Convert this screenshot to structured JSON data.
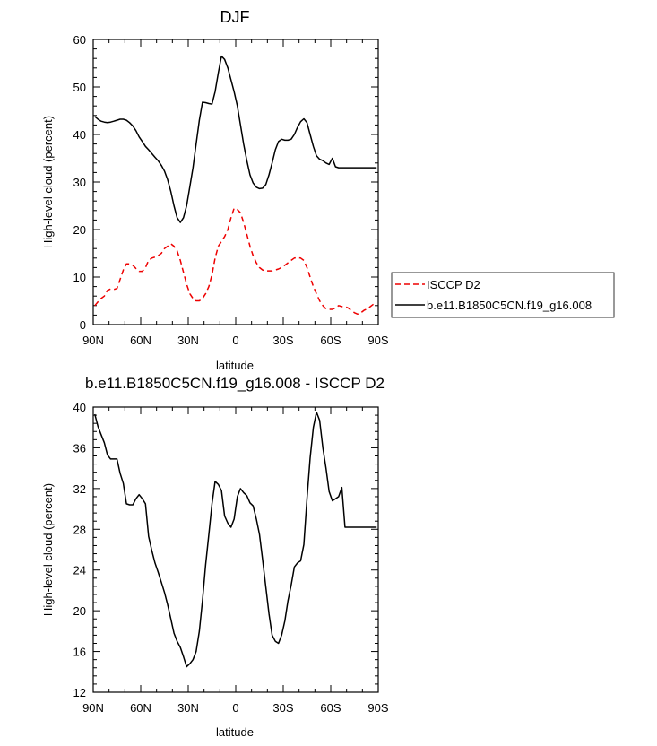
{
  "chart_data": [
    {
      "type": "line",
      "title": "DJF",
      "xlabel": "latitude",
      "ylabel": "High-level cloud (percent)",
      "xlim": [
        90,
        -90
      ],
      "ylim": [
        0,
        60
      ],
      "yticks": [
        0,
        10,
        20,
        30,
        40,
        50,
        60
      ],
      "xticks": [
        {
          "value": 90,
          "label": "90N"
        },
        {
          "value": 60,
          "label": "60N"
        },
        {
          "value": 30,
          "label": "30N"
        },
        {
          "value": 0,
          "label": "0"
        },
        {
          "value": -30,
          "label": "30S"
        },
        {
          "value": -60,
          "label": "60S"
        },
        {
          "value": -90,
          "label": "90S"
        }
      ],
      "legend_position": "right",
      "series": [
        {
          "name": "ISCCP D2",
          "color": "#ee0000",
          "dash": "dashed",
          "x": [
            89,
            87,
            85,
            83,
            81,
            79,
            77,
            75,
            73,
            71,
            69,
            67,
            65,
            63,
            61,
            59,
            57,
            55,
            53,
            51,
            49,
            47,
            45,
            43,
            41,
            39,
            37,
            35,
            33,
            31,
            29,
            27,
            25,
            23,
            21,
            19,
            17,
            15,
            13,
            11,
            9,
            7,
            5,
            3,
            1,
            -1,
            -3,
            -5,
            -7,
            -9,
            -11,
            -13,
            -15,
            -17,
            -19,
            -21,
            -23,
            -25,
            -27,
            -29,
            -31,
            -33,
            -35,
            -37,
            -39,
            -41,
            -43,
            -45,
            -47,
            -49,
            -51,
            -53,
            -55,
            -57,
            -59,
            -61,
            -63,
            -65,
            -67,
            -69,
            -71,
            -73,
            -75,
            -77,
            -79,
            -81,
            -83,
            -85,
            -87,
            -89
          ],
          "y": [
            4,
            4.8,
            5.5,
            6,
            7.2,
            7.5,
            7.4,
            7.6,
            9.5,
            11.5,
            12.8,
            12.8,
            12.5,
            11.8,
            11.2,
            11.2,
            12,
            13.5,
            14,
            14.2,
            14.5,
            15,
            16,
            16.5,
            17,
            16.5,
            15.5,
            13.5,
            11,
            8.5,
            6.5,
            5.5,
            5,
            5,
            5.5,
            6.5,
            8,
            10.5,
            14,
            16.5,
            17.5,
            18.5,
            20,
            22.5,
            24.5,
            24.2,
            23.5,
            21.5,
            19,
            16.5,
            14.5,
            13,
            12,
            11.5,
            11.3,
            11.3,
            11.3,
            11.5,
            11.7,
            12,
            12.5,
            13,
            13.5,
            14,
            14.1,
            14,
            13.5,
            12,
            10,
            8,
            6.5,
            5,
            4,
            3.3,
            3.2,
            3.2,
            3.5,
            4,
            3.8,
            3.8,
            3.5,
            3,
            2.5,
            2.2,
            2.5,
            3,
            3.3,
            3.8,
            4.3,
            4.6
          ]
        },
        {
          "name": "b.e11.B1850C5CN.f19_g16.008",
          "color": "#000000",
          "dash": "solid",
          "x": [
            89,
            87,
            85,
            83,
            81,
            79,
            77,
            75,
            73,
            71,
            69,
            67,
            65,
            63,
            61,
            59,
            57,
            55,
            53,
            51,
            49,
            47,
            45,
            43,
            41,
            39,
            37,
            35,
            33,
            31,
            29,
            27,
            25,
            23,
            21,
            19,
            17,
            15,
            13,
            11,
            9,
            7,
            5,
            3,
            1,
            -1,
            -3,
            -5,
            -7,
            -9,
            -11,
            -13,
            -15,
            -17,
            -19,
            -21,
            -23,
            -25,
            -27,
            -29,
            -31,
            -33,
            -35,
            -37,
            -39,
            -41,
            -43,
            -45,
            -47,
            -49,
            -51,
            -53,
            -55,
            -57,
            -59,
            -61,
            -63,
            -65,
            -67,
            -69,
            -71,
            -73,
            -75,
            -77,
            -79,
            -81,
            -83,
            -85,
            -87,
            -89
          ],
          "y": [
            43.8,
            43.2,
            42.8,
            42.6,
            42.5,
            42.6,
            42.8,
            43,
            43.2,
            43.2,
            43,
            42.5,
            41.8,
            40.8,
            39.5,
            38.5,
            37.5,
            36.8,
            36,
            35.2,
            34.5,
            33.5,
            32.3,
            30.5,
            28,
            25,
            22.5,
            21.5,
            22.5,
            25,
            29,
            33,
            38,
            43,
            46.8,
            46.7,
            46.5,
            46.4,
            49,
            53,
            56.5,
            55.8,
            54,
            51.5,
            49,
            46,
            42,
            38,
            34.5,
            31.5,
            29.8,
            28.9,
            28.6,
            28.7,
            29.5,
            31.5,
            34,
            36.8,
            38.5,
            39,
            38.8,
            38.8,
            39,
            40,
            41.5,
            42.7,
            43.3,
            42.5,
            40,
            37.5,
            35.5,
            34.8,
            34.5,
            34,
            33.7,
            35,
            33.2,
            33,
            33,
            33,
            33,
            33,
            33,
            33,
            33,
            33,
            33,
            33,
            33,
            33
          ]
        }
      ]
    },
    {
      "type": "line",
      "title": "b.e11.B1850C5CN.f19_g16.008 - ISCCP D2",
      "xlabel": "latitude",
      "ylabel": "High-level cloud (percent)",
      "xlim": [
        90,
        -90
      ],
      "ylim": [
        12,
        40
      ],
      "yticks": [
        12,
        16,
        20,
        24,
        28,
        32,
        36,
        40
      ],
      "xticks": [
        {
          "value": 90,
          "label": "90N"
        },
        {
          "value": 60,
          "label": "60N"
        },
        {
          "value": 30,
          "label": "30N"
        },
        {
          "value": 0,
          "label": "0"
        },
        {
          "value": -30,
          "label": "30S"
        },
        {
          "value": -60,
          "label": "60S"
        },
        {
          "value": -90,
          "label": "90S"
        }
      ],
      "series": [
        {
          "color": "#000000",
          "dash": "solid",
          "x": [
            89,
            87,
            85,
            83,
            81,
            79,
            77,
            75,
            73,
            71,
            69,
            67,
            65,
            63,
            61,
            59,
            57,
            55,
            53,
            51,
            49,
            47,
            45,
            43,
            41,
            39,
            37,
            35,
            33,
            31,
            29,
            27,
            25,
            23,
            21,
            19,
            17,
            15,
            13,
            11,
            9,
            7,
            5,
            3,
            1,
            -1,
            -3,
            -5,
            -7,
            -9,
            -11,
            -13,
            -15,
            -17,
            -19,
            -21,
            -23,
            -25,
            -27,
            -29,
            -31,
            -33,
            -35,
            -37,
            -39,
            -41,
            -43,
            -45,
            -47,
            -49,
            -51,
            -53,
            -55,
            -57,
            -59,
            -61,
            -63,
            -65,
            -67,
            -69,
            -71,
            -73,
            -75,
            -77,
            -79,
            -81,
            -83,
            -85,
            -87,
            -89
          ],
          "y": [
            39.3,
            38.1,
            37.3,
            36.5,
            35.3,
            34.9,
            34.9,
            34.9,
            33.5,
            32.5,
            30.5,
            30.4,
            30.4,
            31,
            31.4,
            31,
            30.5,
            27.3,
            25.9,
            24.7,
            23.8,
            22.8,
            21.8,
            20.6,
            19.2,
            17.8,
            17,
            16.4,
            15.5,
            14.5,
            14.8,
            15.2,
            16,
            18,
            21,
            24.5,
            27.5,
            30.5,
            32.7,
            32.4,
            31.8,
            29.3,
            28.6,
            28.2,
            29,
            31.2,
            32,
            31.6,
            31.3,
            30.6,
            30.3,
            29,
            27.5,
            25,
            22.3,
            19.7,
            17.6,
            17,
            16.8,
            17.6,
            19,
            21,
            22.5,
            24.3,
            24.7,
            24.9,
            26.5,
            31,
            35,
            38,
            39.5,
            38.7,
            36,
            34,
            31.7,
            30.8,
            31,
            31.2,
            32.1,
            28.2,
            28.2,
            28.2,
            28.2,
            28.2,
            28.2,
            28.2,
            28.2,
            28.2,
            28.2,
            28.2
          ]
        }
      ]
    }
  ]
}
